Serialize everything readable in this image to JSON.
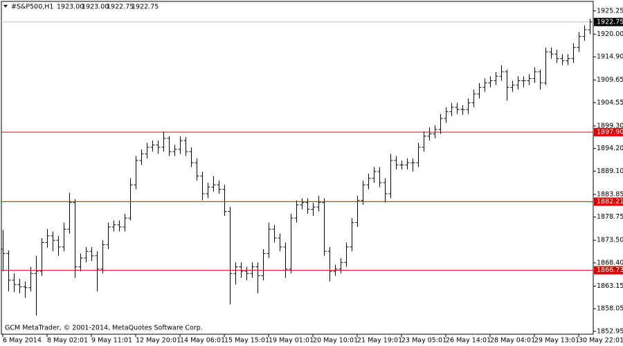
{
  "chart_data": {
    "type": "ohlc",
    "symbol": "#S&P500,H1",
    "header_prices": [
      "1923.00",
      "1923.00",
      "1922.75",
      "1922.75"
    ],
    "footer": "GCM MetaTrader, © 2001-2014, MetaQuotes Software Corp.",
    "color": "#000000",
    "ylim": [
      1852.3,
      1927.4
    ],
    "yticks": [
      1925.25,
      {
        "value": 1920,
        "label": "1920.00"
      },
      {
        "value": 1914.9,
        "label": "1914.90"
      },
      1909.65,
      1904.55,
      {
        "value": 1899.3,
        "label": "1899.30"
      },
      {
        "value": 1894.2,
        "label": "1894.20"
      },
      {
        "value": 1889.1,
        "label": "1889.10"
      },
      1883.85,
      1878.75,
      {
        "value": 1873.5,
        "label": "1873.50"
      },
      {
        "value": 1868.4,
        "label": "1868.40"
      },
      1863.15,
      1858.05,
      1852.95
    ],
    "time_labels": [
      "6 May 2014",
      "8 May 02:01",
      "9 May 11:01",
      "12 May 20:01",
      "14 May 06:01",
      "15 May 15:01",
      "19 May 01:01",
      "20 May 10:01",
      "21 May 19:01",
      "23 May 05:01",
      "26 May 14:01",
      "28 May 04:01",
      "29 May 13:01",
      "30 May 22:01"
    ],
    "current_price": {
      "value": 1922.75,
      "color": "#c0c0c0"
    },
    "levels": [
      {
        "value": 1897.9,
        "label": "1897.90",
        "color": "#e00000"
      },
      {
        "value": 1882.21,
        "label": "1882.21",
        "color": "#e00000"
      },
      {
        "value": 1866.73,
        "label": "1866.73",
        "color": "#e00000"
      }
    ],
    "bars": [
      [
        1871.5,
        1875.8,
        1866.5,
        1870.5
      ],
      [
        1870.5,
        1871.2,
        1862.0,
        1864.5
      ],
      [
        1864.5,
        1866.0,
        1861.8,
        1863.5
      ],
      [
        1863.5,
        1864.8,
        1861.5,
        1863.0
      ],
      [
        1863.0,
        1864.2,
        1860.5,
        1862.8
      ],
      [
        1862.8,
        1867.5,
        1862.0,
        1866.0
      ],
      [
        1866.0,
        1870.0,
        1856.5,
        1866.5
      ],
      [
        1866.5,
        1874.0,
        1865.5,
        1873.0
      ],
      [
        1873.0,
        1876.0,
        1871.8,
        1874.5
      ],
      [
        1874.5,
        1875.5,
        1871.0,
        1873.5
      ],
      [
        1873.5,
        1874.5,
        1870.0,
        1872.0
      ],
      [
        1872.0,
        1877.5,
        1871.0,
        1876.0
      ],
      [
        1876.0,
        1884.2,
        1875.0,
        1882.0
      ],
      [
        1882.0,
        1882.8,
        1865.0,
        1867.5
      ],
      [
        1867.5,
        1870.5,
        1866.5,
        1869.5
      ],
      [
        1869.5,
        1872.0,
        1868.5,
        1871.0
      ],
      [
        1871.0,
        1872.0,
        1868.8,
        1870.0
      ],
      [
        1870.0,
        1871.0,
        1862.0,
        1867.0
      ],
      [
        1867.0,
        1873.5,
        1866.0,
        1872.5
      ],
      [
        1872.5,
        1877.5,
        1871.5,
        1876.5
      ],
      [
        1876.5,
        1878.0,
        1875.5,
        1877.0
      ],
      [
        1877.0,
        1878.0,
        1875.5,
        1876.5
      ],
      [
        1876.5,
        1879.5,
        1875.5,
        1878.5
      ],
      [
        1878.5,
        1887.5,
        1878.0,
        1886.0
      ],
      [
        1886.0,
        1892.5,
        1885.0,
        1891.5
      ],
      [
        1891.5,
        1894.0,
        1890.5,
        1893.0
      ],
      [
        1893.0,
        1895.5,
        1892.0,
        1894.5
      ],
      [
        1894.5,
        1896.0,
        1893.5,
        1895.0
      ],
      [
        1895.0,
        1896.0,
        1893.0,
        1894.5
      ],
      [
        1894.5,
        1898.0,
        1893.5,
        1896.5
      ],
      [
        1896.5,
        1897.0,
        1892.5,
        1893.5
      ],
      [
        1893.5,
        1895.0,
        1892.5,
        1894.0
      ],
      [
        1894.0,
        1897.0,
        1893.0,
        1896.0
      ],
      [
        1896.0,
        1896.8,
        1892.5,
        1893.5
      ],
      [
        1893.5,
        1894.5,
        1890.0,
        1891.0
      ],
      [
        1891.0,
        1892.0,
        1887.0,
        1888.0
      ],
      [
        1888.0,
        1889.0,
        1882.5,
        1884.0
      ],
      [
        1884.0,
        1886.5,
        1883.0,
        1885.5
      ],
      [
        1885.5,
        1888.0,
        1884.5,
        1886.0
      ],
      [
        1886.0,
        1887.0,
        1884.0,
        1885.0
      ],
      [
        1885.0,
        1886.0,
        1879.0,
        1880.0
      ],
      [
        1880.0,
        1881.0,
        1859.0,
        1866.0
      ],
      [
        1866.0,
        1868.5,
        1863.5,
        1867.5
      ],
      [
        1867.5,
        1868.5,
        1865.0,
        1866.5
      ],
      [
        1866.5,
        1867.5,
        1864.5,
        1866.0
      ],
      [
        1866.0,
        1868.5,
        1865.0,
        1867.5
      ],
      [
        1867.5,
        1868.5,
        1861.5,
        1865.5
      ],
      [
        1865.5,
        1871.5,
        1864.5,
        1870.5
      ],
      [
        1870.5,
        1877.5,
        1869.5,
        1876.0
      ],
      [
        1876.0,
        1877.0,
        1873.0,
        1874.0
      ],
      [
        1874.0,
        1875.0,
        1871.0,
        1872.0
      ],
      [
        1872.0,
        1873.0,
        1865.0,
        1867.0
      ],
      [
        1867.0,
        1879.5,
        1866.0,
        1878.5
      ],
      [
        1878.5,
        1882.5,
        1877.5,
        1881.5
      ],
      [
        1881.5,
        1883.0,
        1880.5,
        1882.0
      ],
      [
        1882.0,
        1883.0,
        1879.5,
        1880.5
      ],
      [
        1880.5,
        1882.0,
        1879.0,
        1881.0
      ],
      [
        1881.0,
        1883.5,
        1880.0,
        1882.0
      ],
      [
        1882.0,
        1883.0,
        1870.0,
        1871.0
      ],
      [
        1871.0,
        1872.0,
        1864.2,
        1866.5
      ],
      [
        1866.5,
        1868.0,
        1865.5,
        1867.0
      ],
      [
        1867.0,
        1869.5,
        1866.0,
        1868.5
      ],
      [
        1868.5,
        1873.0,
        1867.5,
        1872.0
      ],
      [
        1872.0,
        1878.5,
        1871.0,
        1877.5
      ],
      [
        1877.5,
        1883.5,
        1876.5,
        1882.5
      ],
      [
        1882.5,
        1887.0,
        1881.5,
        1886.0
      ],
      [
        1886.0,
        1888.5,
        1885.0,
        1887.5
      ],
      [
        1887.5,
        1890.0,
        1886.5,
        1889.0
      ],
      [
        1889.0,
        1890.0,
        1885.5,
        1886.5
      ],
      [
        1886.5,
        1887.5,
        1882.0,
        1884.0
      ],
      [
        1884.0,
        1893.0,
        1883.0,
        1891.5
      ],
      [
        1891.5,
        1892.5,
        1889.5,
        1890.5
      ],
      [
        1890.5,
        1891.5,
        1889.5,
        1890.5
      ],
      [
        1890.5,
        1892.0,
        1889.5,
        1891.0
      ],
      [
        1891.0,
        1892.0,
        1889.0,
        1891.0
      ],
      [
        1891.0,
        1895.5,
        1890.0,
        1894.5
      ],
      [
        1894.5,
        1898.0,
        1893.5,
        1897.0
      ],
      [
        1897.0,
        1899.0,
        1896.0,
        1897.5
      ],
      [
        1897.5,
        1899.5,
        1896.5,
        1898.5
      ],
      [
        1898.5,
        1902.0,
        1897.5,
        1901.0
      ],
      [
        1901.0,
        1903.5,
        1900.0,
        1902.5
      ],
      [
        1902.5,
        1904.5,
        1901.5,
        1903.5
      ],
      [
        1903.5,
        1904.5,
        1902.0,
        1903.0
      ],
      [
        1903.0,
        1904.0,
        1901.8,
        1903.0
      ],
      [
        1903.0,
        1905.5,
        1902.0,
        1904.5
      ],
      [
        1904.5,
        1907.5,
        1903.5,
        1906.5
      ],
      [
        1906.5,
        1909.0,
        1905.5,
        1908.0
      ],
      [
        1908.0,
        1910.0,
        1907.0,
        1909.0
      ],
      [
        1909.0,
        1910.5,
        1908.0,
        1909.5
      ],
      [
        1909.5,
        1911.5,
        1908.5,
        1910.5
      ],
      [
        1910.5,
        1913.0,
        1909.5,
        1911.5
      ],
      [
        1911.5,
        1912.0,
        1905.0,
        1908.0
      ],
      [
        1908.0,
        1909.5,
        1907.0,
        1908.5
      ],
      [
        1908.5,
        1910.5,
        1907.5,
        1909.5
      ],
      [
        1909.5,
        1910.5,
        1908.0,
        1909.5
      ],
      [
        1909.5,
        1911.0,
        1908.5,
        1910.0
      ],
      [
        1910.0,
        1912.5,
        1909.0,
        1911.5
      ],
      [
        1911.5,
        1912.0,
        1907.5,
        1909.0
      ],
      [
        1909.0,
        1917.0,
        1908.5,
        1916.0
      ],
      [
        1916.0,
        1917.0,
        1914.5,
        1915.5
      ],
      [
        1915.5,
        1916.5,
        1913.5,
        1914.5
      ],
      [
        1914.5,
        1915.5,
        1913.0,
        1914.0
      ],
      [
        1914.0,
        1915.5,
        1913.0,
        1914.5
      ],
      [
        1914.5,
        1918.0,
        1913.5,
        1917.0
      ],
      [
        1917.0,
        1920.5,
        1916.0,
        1919.5
      ],
      [
        1919.5,
        1922.0,
        1918.5,
        1921.0
      ],
      [
        1921.0,
        1923.5,
        1920.0,
        1922.75
      ]
    ]
  }
}
